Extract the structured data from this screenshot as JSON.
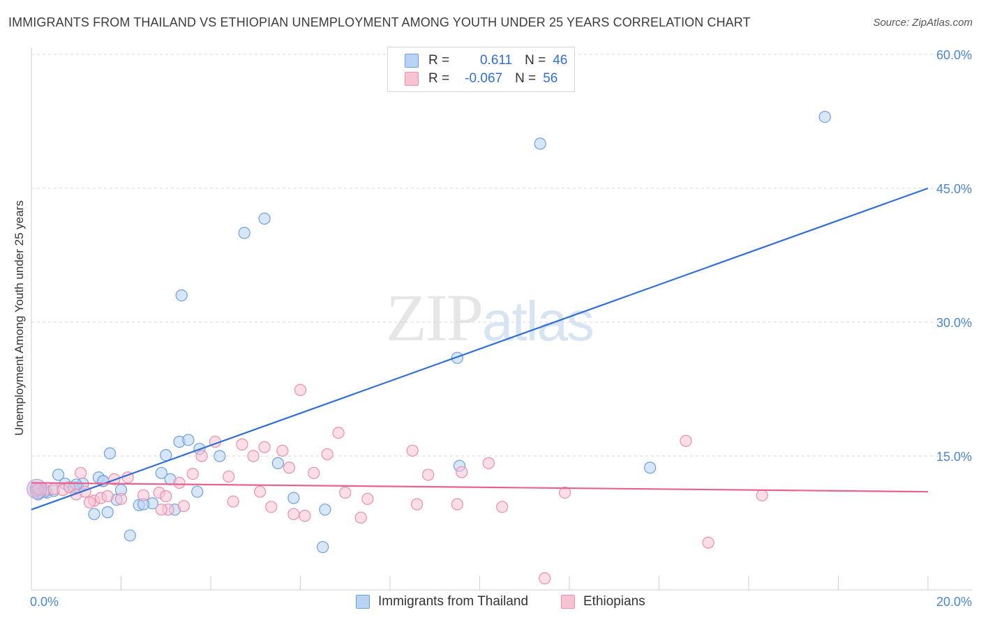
{
  "title": "IMMIGRANTS FROM THAILAND VS ETHIOPIAN UNEMPLOYMENT AMONG YOUTH UNDER 25 YEARS CORRELATION CHART",
  "source": "Source: ZipAtlas.com",
  "watermark": {
    "zip": "ZIP",
    "atlas": "atlas"
  },
  "legend": {
    "rows": [
      {
        "r_label": "R =",
        "r_value": "0.611",
        "n_label": "N =",
        "n_value": "46",
        "fill": "#b8d3f3",
        "stroke": "#6d9fe0"
      },
      {
        "r_label": "R =",
        "r_value": "-0.067",
        "n_label": "N =",
        "n_value": "56",
        "fill": "#f7c3d3",
        "stroke": "#ea8eab"
      }
    ]
  },
  "bottom_legend": [
    "Immigrants from Thailand",
    "Ethiopians"
  ],
  "chart_data": {
    "type": "scatter",
    "ylabel": "Unemployment Among Youth under 25 years",
    "xlim": [
      0,
      20
    ],
    "ylim": [
      0,
      60
    ],
    "x_ticks": [
      "0.0%",
      "20.0%"
    ],
    "y_ticks": [
      {
        "value": 15,
        "label": "15.0%"
      },
      {
        "value": 30,
        "label": "30.0%"
      },
      {
        "value": 45,
        "label": "45.0%"
      },
      {
        "value": 60,
        "label": "60.0%"
      }
    ],
    "grid": true,
    "series": [
      {
        "name": "Immigrants from Thailand",
        "color": "#6d9fe0",
        "fill": "#b8d3f3",
        "line_color": "#2f6fd6",
        "trendline": [
          [
            0,
            9.0
          ],
          [
            20,
            45.0
          ]
        ],
        "points": [
          [
            0.1,
            11.4
          ],
          [
            0.2,
            10.9
          ],
          [
            0.35,
            10.9
          ],
          [
            0.5,
            11.1
          ],
          [
            0.6,
            12.9
          ],
          [
            0.75,
            11.9
          ],
          [
            0.85,
            11.5
          ],
          [
            0.95,
            11.5
          ],
          [
            1.05,
            11.5
          ],
          [
            1.15,
            11.9
          ],
          [
            1.4,
            8.5
          ],
          [
            1.5,
            12.6
          ],
          [
            1.6,
            12.2
          ],
          [
            1.7,
            8.7
          ],
          [
            1.75,
            15.3
          ],
          [
            1.9,
            10.1
          ],
          [
            2.0,
            11.2
          ],
          [
            2.2,
            6.1
          ],
          [
            2.7,
            9.7
          ],
          [
            2.9,
            13.1
          ],
          [
            3.0,
            15.1
          ],
          [
            3.1,
            12.4
          ],
          [
            3.2,
            9.0
          ],
          [
            3.3,
            16.6
          ],
          [
            3.35,
            33.0
          ],
          [
            3.5,
            16.8
          ],
          [
            3.7,
            11.0
          ],
          [
            3.75,
            15.8
          ],
          [
            4.2,
            15.0
          ],
          [
            4.75,
            40.0
          ],
          [
            5.2,
            41.6
          ],
          [
            5.5,
            14.2
          ],
          [
            5.85,
            10.3
          ],
          [
            6.5,
            4.8
          ],
          [
            6.55,
            9.0
          ],
          [
            9.5,
            26.0
          ],
          [
            9.55,
            13.9
          ],
          [
            11.35,
            50.0
          ],
          [
            13.8,
            13.7
          ],
          [
            17.7,
            53.0
          ],
          [
            0.3,
            11.0
          ],
          [
            0.15,
            10.7
          ],
          [
            1.0,
            11.8
          ],
          [
            2.4,
            9.5
          ],
          [
            2.5,
            9.6
          ],
          [
            1.6,
            12.2
          ]
        ]
      },
      {
        "name": "Ethiopians",
        "color": "#ea8eab",
        "fill": "#f7c3d3",
        "line_color": "#e8628d",
        "trendline": [
          [
            0,
            12.0
          ],
          [
            20,
            11.0
          ]
        ],
        "points": [
          [
            0.1,
            11.1
          ],
          [
            0.3,
            11.2
          ],
          [
            0.5,
            11.3
          ],
          [
            0.7,
            11.2
          ],
          [
            0.85,
            11.5
          ],
          [
            1.0,
            10.7
          ],
          [
            1.1,
            13.1
          ],
          [
            1.2,
            11.0
          ],
          [
            1.4,
            10.0
          ],
          [
            1.55,
            10.3
          ],
          [
            1.7,
            10.5
          ],
          [
            1.85,
            12.4
          ],
          [
            2.0,
            10.2
          ],
          [
            2.15,
            12.6
          ],
          [
            2.5,
            10.6
          ],
          [
            2.85,
            10.9
          ],
          [
            3.0,
            10.5
          ],
          [
            3.05,
            9.0
          ],
          [
            3.3,
            12.0
          ],
          [
            3.4,
            9.4
          ],
          [
            3.6,
            13.0
          ],
          [
            3.8,
            15.0
          ],
          [
            4.1,
            16.6
          ],
          [
            4.4,
            12.7
          ],
          [
            4.5,
            9.9
          ],
          [
            4.7,
            16.3
          ],
          [
            4.95,
            15.0
          ],
          [
            5.1,
            11.0
          ],
          [
            5.2,
            16.0
          ],
          [
            5.35,
            9.3
          ],
          [
            5.6,
            15.6
          ],
          [
            5.75,
            13.7
          ],
          [
            5.85,
            8.5
          ],
          [
            6.0,
            22.4
          ],
          [
            6.1,
            8.3
          ],
          [
            6.3,
            13.1
          ],
          [
            6.6,
            15.2
          ],
          [
            6.85,
            17.6
          ],
          [
            7.0,
            10.9
          ],
          [
            7.35,
            8.1
          ],
          [
            7.5,
            10.2
          ],
          [
            8.5,
            15.6
          ],
          [
            8.6,
            9.6
          ],
          [
            8.85,
            12.9
          ],
          [
            9.5,
            9.6
          ],
          [
            9.6,
            13.2
          ],
          [
            10.2,
            14.2
          ],
          [
            10.5,
            9.3
          ],
          [
            11.45,
            1.3
          ],
          [
            11.9,
            10.9
          ],
          [
            14.6,
            16.7
          ],
          [
            15.1,
            5.3
          ],
          [
            16.3,
            10.6
          ],
          [
            0.15,
            11.3
          ],
          [
            1.3,
            9.8
          ],
          [
            2.9,
            9.0
          ]
        ]
      }
    ]
  }
}
